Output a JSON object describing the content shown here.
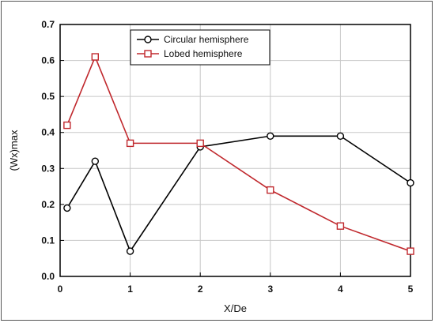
{
  "chart_data": {
    "type": "line",
    "xlabel": "X/De",
    "ylabel": "(Wx)max",
    "xlim": [
      0,
      5
    ],
    "ylim": [
      0,
      0.7
    ],
    "xticks": [
      "0",
      "1",
      "2",
      "3",
      "4",
      "5"
    ],
    "yticks": [
      "0.0",
      "0.1",
      "0.2",
      "0.3",
      "0.4",
      "0.5",
      "0.6",
      "0.7"
    ],
    "grid": true,
    "legend_position": "top-center",
    "series": [
      {
        "name": "Circular hemisphere",
        "color": "#000000",
        "marker": "circle",
        "x": [
          0.1,
          0.5,
          1,
          2,
          3,
          4,
          5
        ],
        "y": [
          0.19,
          0.32,
          0.07,
          0.36,
          0.39,
          0.39,
          0.26
        ]
      },
      {
        "name": "Lobed hemisphere",
        "color": "#c0282d",
        "marker": "square",
        "x": [
          0.1,
          0.5,
          1,
          2,
          3,
          4,
          5
        ],
        "y": [
          0.42,
          0.61,
          0.37,
          0.37,
          0.24,
          0.14,
          0.07
        ]
      }
    ]
  }
}
